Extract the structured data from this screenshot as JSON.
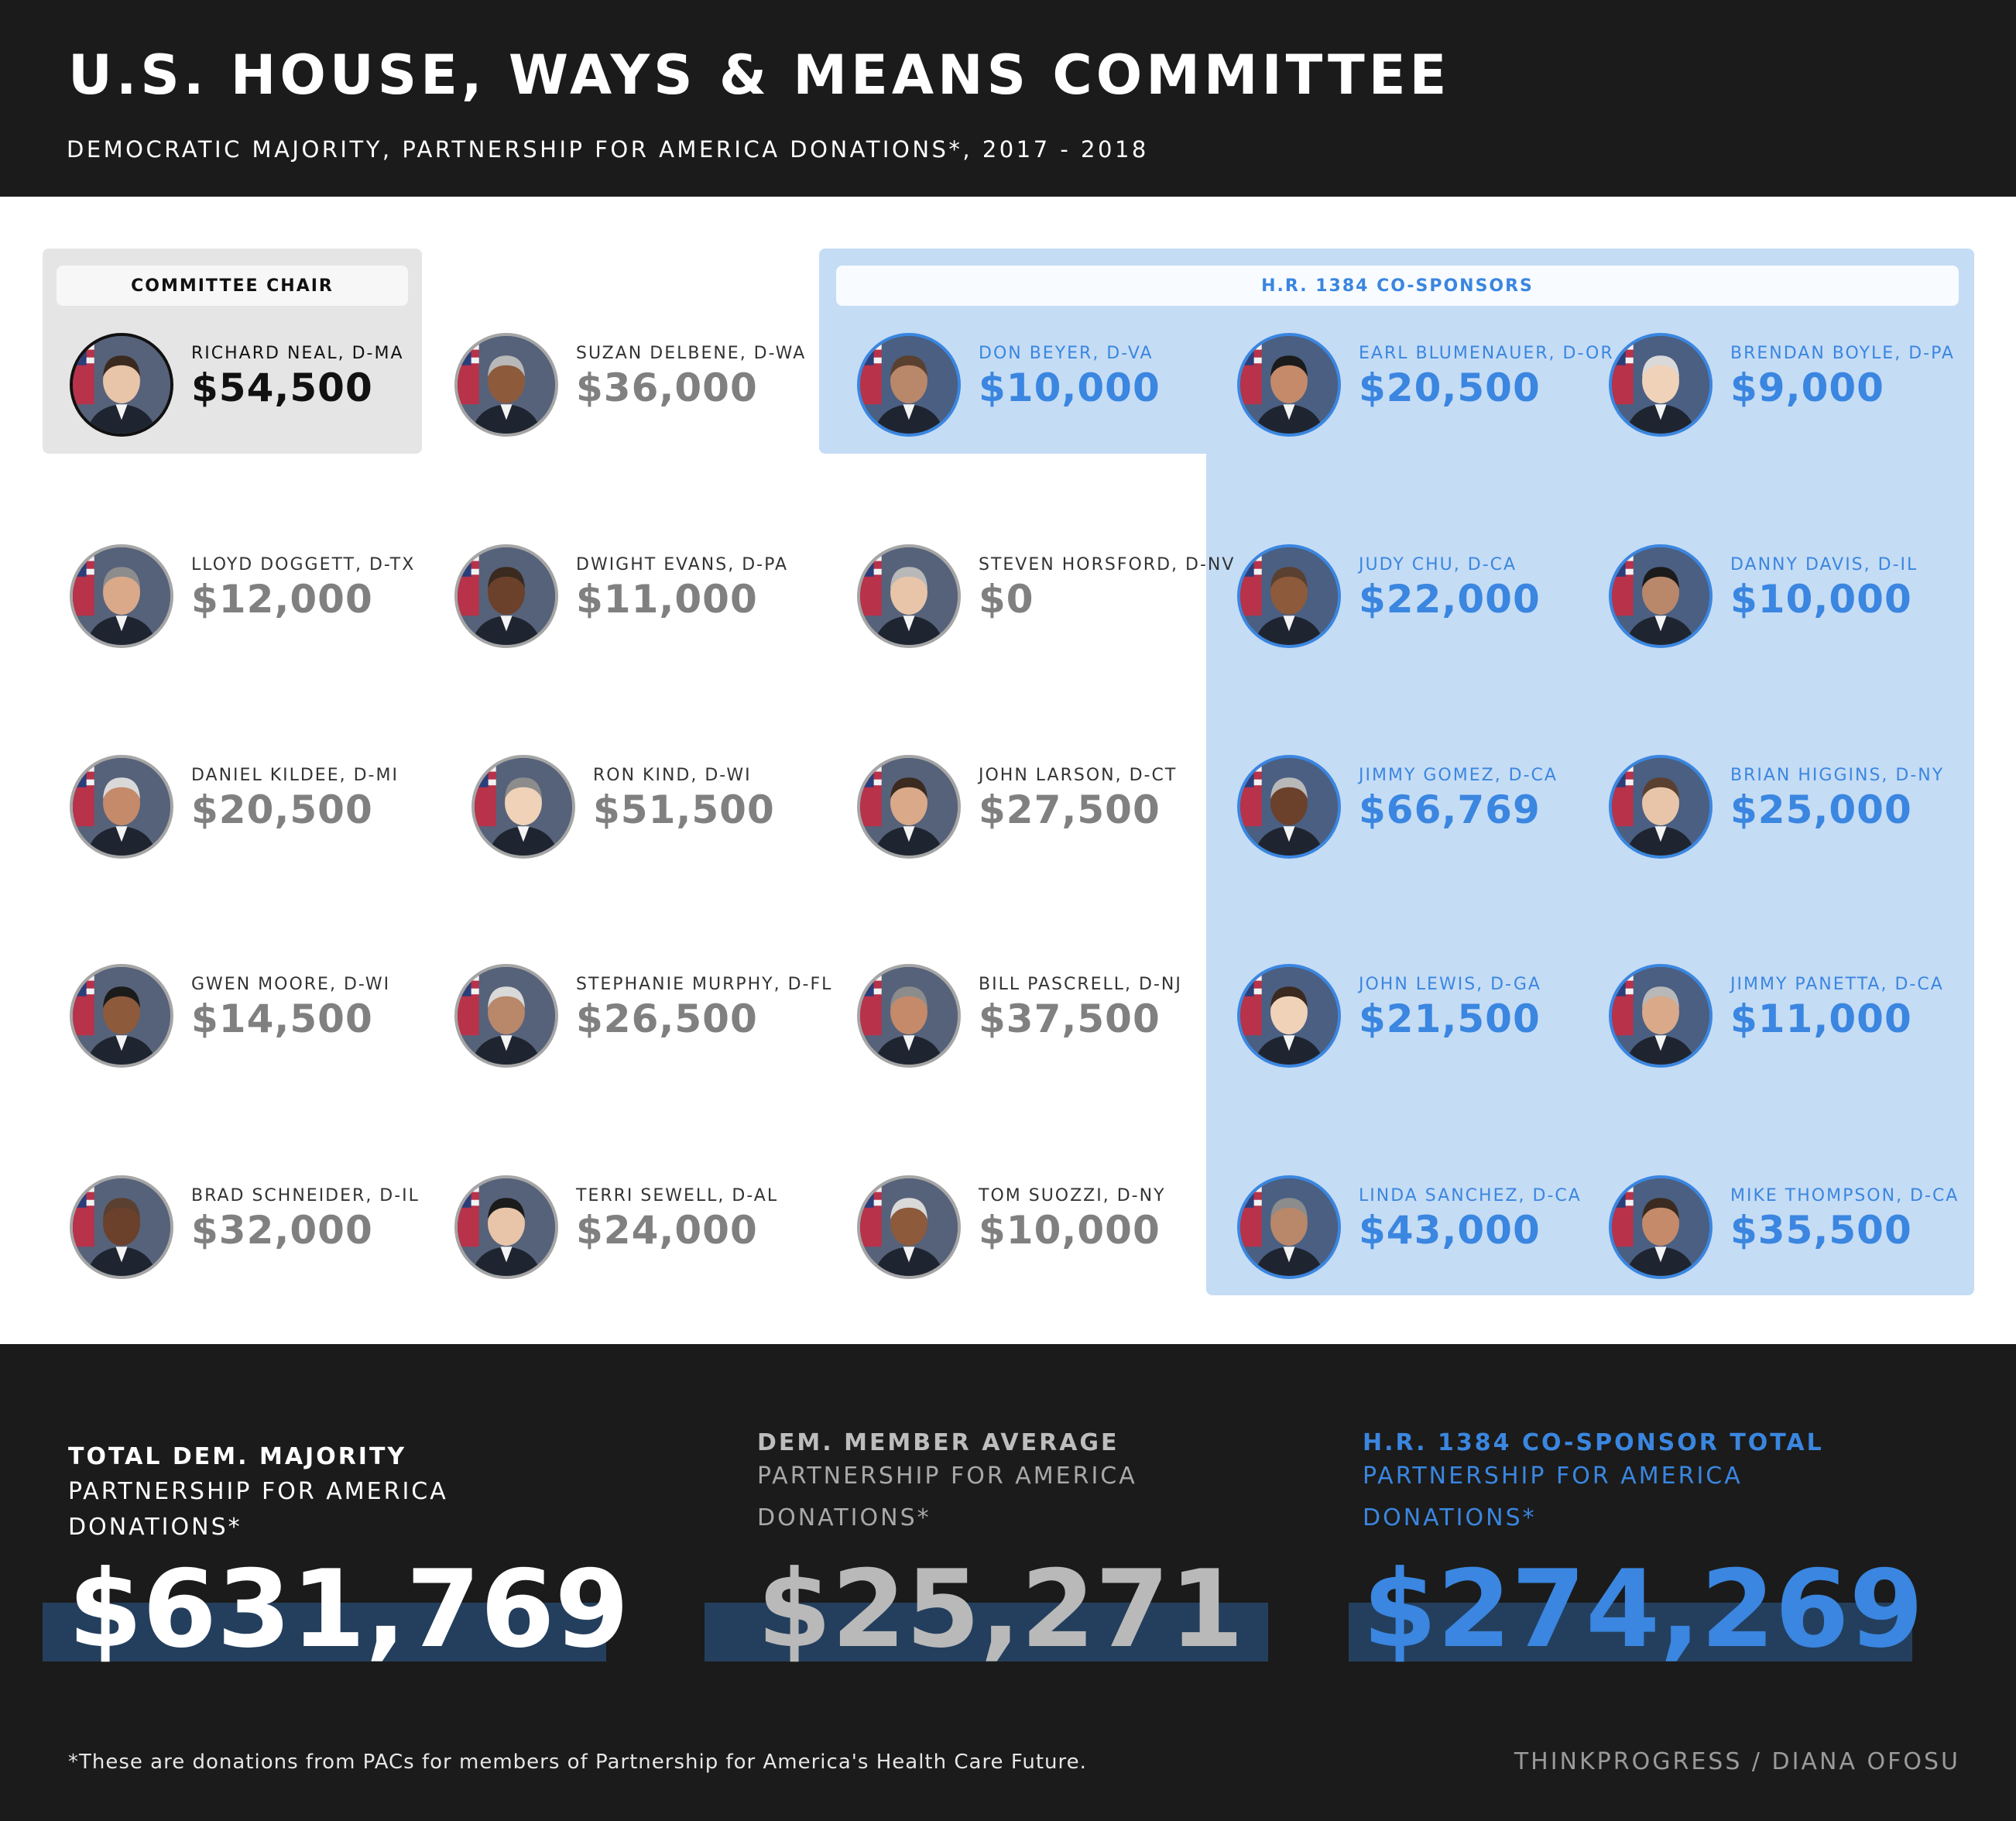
{
  "header": {
    "title": "U.S. HOUSE, WAYS & MEANS COMMITTEE",
    "subtitle": "DEMOCRATIC MAJORITY, PARTNERSHIP FOR AMERICA DONATIONS*, 2017 - 2018"
  },
  "panels": {
    "chair_label": "COMMITTEE CHAIR",
    "cosponsor_label": "H.R. 1384 CO-SPONSORS"
  },
  "members": [
    {
      "name": "RICHARD NEAL, D-MA",
      "amount": "$54,500",
      "group": "chair"
    },
    {
      "name": "SUZAN DELBENE, D-WA",
      "amount": "$36,000",
      "group": "member"
    },
    {
      "name": "DON BEYER, D-VA",
      "amount": "$10,000",
      "group": "cosponsor"
    },
    {
      "name": "EARL BLUMENAUER, D-OR",
      "amount": "$20,500",
      "group": "cosponsor"
    },
    {
      "name": "BRENDAN BOYLE, D-PA",
      "amount": "$9,000",
      "group": "cosponsor"
    },
    {
      "name": "LLOYD DOGGETT, D-TX",
      "amount": "$12,000",
      "group": "member"
    },
    {
      "name": "DWIGHT EVANS, D-PA",
      "amount": "$11,000",
      "group": "member"
    },
    {
      "name": "STEVEN HORSFORD, D-NV",
      "amount": "$0",
      "group": "member"
    },
    {
      "name": "JUDY CHU, D-CA",
      "amount": "$22,000",
      "group": "cosponsor"
    },
    {
      "name": "DANNY DAVIS, D-IL",
      "amount": "$10,000",
      "group": "cosponsor"
    },
    {
      "name": "DANIEL KILDEE, D-MI",
      "amount": "$20,500",
      "group": "member"
    },
    {
      "name": "RON KIND, D-WI",
      "amount": "$51,500",
      "group": "member"
    },
    {
      "name": "JOHN LARSON, D-CT",
      "amount": "$27,500",
      "group": "member"
    },
    {
      "name": "JIMMY GOMEZ, D-CA",
      "amount": "$66,769",
      "group": "cosponsor"
    },
    {
      "name": "BRIAN HIGGINS, D-NY",
      "amount": "$25,000",
      "group": "cosponsor"
    },
    {
      "name": "GWEN MOORE, D-WI",
      "amount": "$14,500",
      "group": "member"
    },
    {
      "name": "STEPHANIE MURPHY, D-FL",
      "amount": "$26,500",
      "group": "member"
    },
    {
      "name": "BILL PASCRELL, D-NJ",
      "amount": "$37,500",
      "group": "member"
    },
    {
      "name": "JOHN LEWIS, D-GA",
      "amount": "$21,500",
      "group": "cosponsor"
    },
    {
      "name": "JIMMY PANETTA, D-CA",
      "amount": "$11,000",
      "group": "cosponsor"
    },
    {
      "name": "BRAD SCHNEIDER, D-IL",
      "amount": "$32,000",
      "group": "member"
    },
    {
      "name": "TERRI SEWELL, D-AL",
      "amount": "$24,000",
      "group": "member"
    },
    {
      "name": "TOM SUOZZI, D-NY",
      "amount": "$10,000",
      "group": "member"
    },
    {
      "name": "LINDA SANCHEZ, D-CA",
      "amount": "$43,000",
      "group": "cosponsor"
    },
    {
      "name": "MIKE THOMPSON, D-CA",
      "amount": "$35,500",
      "group": "cosponsor"
    }
  ],
  "stats": [
    {
      "title": "TOTAL DEM. MAJORITY",
      "subtitle": "PARTNERSHIP FOR AMERICA DONATIONS*",
      "value": "$631,769",
      "title_color": "#ffffff",
      "sub_color": "#ffffff",
      "value_color": "#ffffff"
    },
    {
      "title": "DEM. MEMBER AVERAGE",
      "subtitle": "PARTNERSHIP FOR AMERICA DONATIONS*",
      "value": "$25,271",
      "title_color": "#bdbdbd",
      "sub_color": "#a8a8a8",
      "value_color": "#b9b9b9"
    },
    {
      "title": "H.R. 1384 CO-SPONSOR TOTAL",
      "subtitle": "PARTNERSHIP FOR AMERICA DONATIONS*",
      "value": "$274,269",
      "title_color": "#3a86e0",
      "sub_color": "#3a86e0",
      "value_color": "#3a86e0"
    }
  ],
  "footer": {
    "footnote": "*These are donations from PACs for members of Partnership for America's Health Care Future.",
    "credit": "THINKPROGRESS / DIANA OFOSU"
  },
  "colors": {
    "header_bg": "#1b1b1b",
    "cosponsor_blue": "#3a86e0",
    "cosponsor_panel": "#c5dcf5",
    "chair_panel": "#e6e5e6",
    "member_gray": "#808080"
  }
}
